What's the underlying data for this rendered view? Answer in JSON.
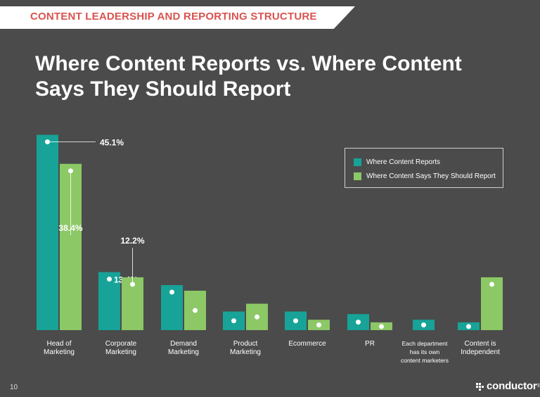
{
  "header": {
    "section_label": "CONTENT LEADERSHIP AND REPORTING STRUCTURE",
    "title_line1": "Where Content Reports vs. Where Content",
    "title_line2": "Says They Should Report"
  },
  "footer": {
    "page_number": "10",
    "brand": "conductor",
    "brand_mark": "®"
  },
  "colors": {
    "background": "#4b4b4b",
    "series1": "#17a398",
    "series2": "#8cc866",
    "banner_text": "#d9534f"
  },
  "chart_data": {
    "type": "bar",
    "categories": [
      [
        "Head of",
        "Marketing"
      ],
      [
        "Corporate",
        "Marketing"
      ],
      [
        "Demand",
        "Marketing"
      ],
      [
        "Product",
        "Marketing"
      ],
      [
        "Ecommerce"
      ],
      [
        "PR"
      ],
      [
        "Each department",
        "has its own",
        "content marketers"
      ],
      [
        "Content is",
        "Independent"
      ]
    ],
    "series": [
      {
        "name": "Where Content Reports",
        "values": [
          45.1,
          13.4,
          10.4,
          4.3,
          4.3,
          3.7,
          2.4,
          1.8
        ],
        "labels": [
          "45.1%",
          "13.4%",
          "10.4%",
          "4.3%",
          "4.3%",
          "3.7%",
          "2.4%",
          "1.8%"
        ]
      },
      {
        "name": "Where Content Says They Should Report",
        "values": [
          38.4,
          12.2,
          9.1,
          6.1,
          2.4,
          1.8,
          null,
          12.2
        ],
        "labels": [
          "38.4%",
          "12.2%",
          "9.1%",
          "6.1%",
          "2.4%",
          "1.8%",
          null,
          "12.2%"
        ]
      }
    ],
    "ylim": [
      0,
      46
    ],
    "legend": "top-right",
    "grid": false
  }
}
